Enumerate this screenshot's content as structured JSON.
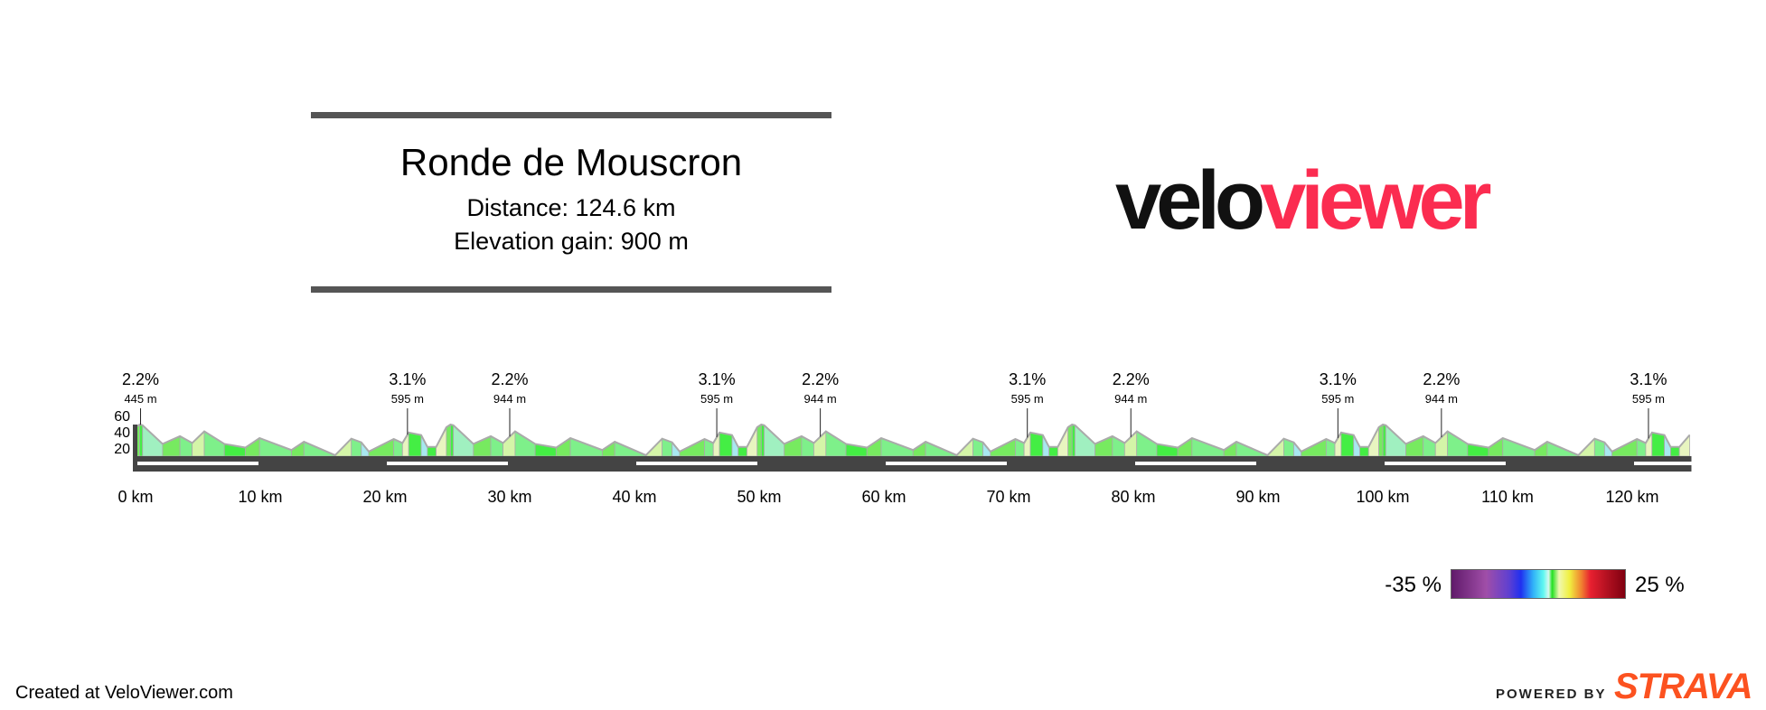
{
  "header": {
    "title": "Ronde de Mouscron",
    "distance": "Distance: 124.6 km",
    "elevation_gain": "Elevation gain: 900 m"
  },
  "logo": {
    "part1": "velo",
    "part2": "viewer",
    "colors": {
      "velo": "#111111",
      "viewer": "#fb2c50"
    }
  },
  "legend": {
    "min_label": "-35 %",
    "max_label": "25 %"
  },
  "footer": {
    "created": "Created at VeloViewer.com",
    "powered_by": "POWERED BY",
    "strava": "STRAVA",
    "strava_color": "#fc5220"
  },
  "chart_data": {
    "type": "area",
    "title": "",
    "xlabel": "",
    "ylabel": "",
    "x_unit": "km",
    "y_unit": "m",
    "xlim": [
      0,
      124.6
    ],
    "ylim": [
      14,
      62
    ],
    "y_ticks": [
      "60",
      "40",
      "20"
    ],
    "x_ticks": [
      "0 km",
      "10 km",
      "20 km",
      "30 km",
      "40 km",
      "50 km",
      "60 km",
      "70 km",
      "80 km",
      "90 km",
      "100 km",
      "110 km",
      "120 km"
    ],
    "lap_length_km": 24.92,
    "laps": 5,
    "lap_profile": [
      [
        0,
        58
      ],
      [
        0.33,
        62
      ],
      [
        0.56,
        61
      ],
      [
        2.17,
        32.6
      ],
      [
        3.56,
        44.3
      ],
      [
        4.54,
        34
      ],
      [
        5.51,
        51.7
      ],
      [
        7.12,
        32.6
      ],
      [
        8.8,
        27
      ],
      [
        9.94,
        41.5
      ],
      [
        12.5,
        23.3
      ],
      [
        13.5,
        35.9
      ],
      [
        16.0,
        15.4
      ],
      [
        17.3,
        40.6
      ],
      [
        18.1,
        35
      ],
      [
        18.7,
        21
      ],
      [
        20.7,
        40
      ],
      [
        21.4,
        34
      ],
      [
        21.9,
        49.9
      ],
      [
        22.9,
        46
      ],
      [
        23.4,
        28
      ],
      [
        24.1,
        28
      ]
    ],
    "annotations": [
      {
        "km": 0.4,
        "gradient": "2.2%",
        "length": "445 m"
      },
      {
        "km": 21.8,
        "gradient": "3.1%",
        "length": "595 m"
      },
      {
        "km": 30.0,
        "gradient": "2.2%",
        "length": "944 m"
      },
      {
        "km": 46.6,
        "gradient": "3.1%",
        "length": "595 m"
      },
      {
        "km": 54.9,
        "gradient": "2.2%",
        "length": "944 m"
      },
      {
        "km": 71.5,
        "gradient": "3.1%",
        "length": "595 m"
      },
      {
        "km": 79.8,
        "gradient": "2.2%",
        "length": "944 m"
      },
      {
        "km": 96.4,
        "gradient": "3.1%",
        "length": "595 m"
      },
      {
        "km": 104.7,
        "gradient": "2.2%",
        "length": "944 m"
      },
      {
        "km": 121.3,
        "gradient": "3.1%",
        "length": "595 m"
      }
    ],
    "gradient_colors": {
      "steep_up": "#e8f5c0",
      "up": "#d4f5a8",
      "mild_up": "#77ea60",
      "flat": "#44ee44",
      "mild_down": "#7ef08a",
      "down": "#a0f0c0",
      "steep_down": "#a8e8f0"
    }
  }
}
